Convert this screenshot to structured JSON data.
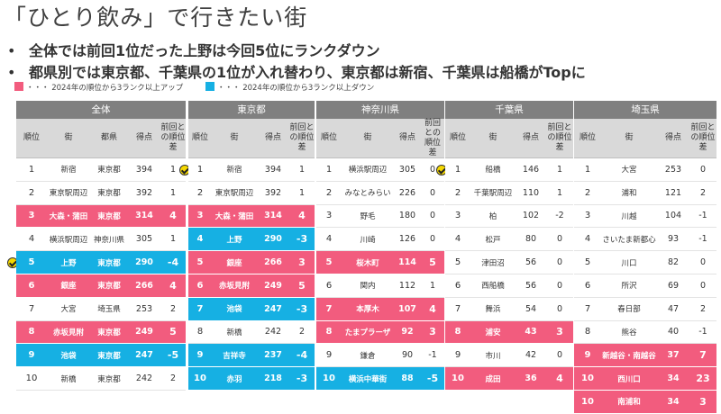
{
  "title": "「ひとり飲み」で行きたい街",
  "bullets": [
    "全体では前回1位だった上野は今回5位にランクダウン",
    "都県別では東京都、千葉県の1位が入れ替わり、東京都は新宿、千葉県は船橋がTopに"
  ],
  "bullet_marker": "•",
  "legend": [
    {
      "text": "・・・ 2024年の順位から3ランク以上アップ",
      "color": "#f25c7e"
    },
    {
      "text": "・・・ 2024年の順位から3ランク以上ダウン",
      "color": "#16b0e3"
    }
  ],
  "colors": {
    "up": "#f25c7e",
    "down": "#16b0e3",
    "header": "#808080",
    "subheader": "#d9d9d9",
    "check": "#f5d800"
  },
  "tables": [
    {
      "title": "全体",
      "headers": [
        "順位",
        "街",
        "都県",
        "得点",
        "前回との順位差"
      ],
      "rows": [
        {
          "rank": "1",
          "town": "新宿",
          "pref": "東京都",
          "score": "394",
          "diff": "1",
          "hl": ""
        },
        {
          "rank": "2",
          "town": "東京駅周辺",
          "pref": "東京都",
          "score": "392",
          "diff": "1",
          "hl": ""
        },
        {
          "rank": "3",
          "town": "大森・蒲田",
          "pref": "東京都",
          "score": "314",
          "diff": "4",
          "hl": "pink"
        },
        {
          "rank": "4",
          "town": "横浜駅周辺",
          "pref": "神奈川県",
          "score": "305",
          "diff": "1",
          "hl": ""
        },
        {
          "rank": "5",
          "town": "上野",
          "pref": "東京都",
          "score": "290",
          "diff": "-4",
          "hl": "blue",
          "check": true
        },
        {
          "rank": "6",
          "town": "銀座",
          "pref": "東京都",
          "score": "266",
          "diff": "4",
          "hl": "pink"
        },
        {
          "rank": "7",
          "town": "大宮",
          "pref": "埼玉県",
          "score": "253",
          "diff": "2",
          "hl": ""
        },
        {
          "rank": "8",
          "town": "赤坂見附",
          "pref": "東京都",
          "score": "249",
          "diff": "5",
          "hl": "pink"
        },
        {
          "rank": "9",
          "town": "池袋",
          "pref": "東京都",
          "score": "247",
          "diff": "-5",
          "hl": "blue"
        },
        {
          "rank": "10",
          "town": "新橋",
          "pref": "東京都",
          "score": "242",
          "diff": "2",
          "hl": ""
        }
      ]
    },
    {
      "title": "東京都",
      "headers": [
        "順位",
        "街",
        "得点",
        "前回との順位差"
      ],
      "rows": [
        {
          "rank": "1",
          "town": "新宿",
          "score": "394",
          "diff": "1",
          "hl": "",
          "check": true
        },
        {
          "rank": "2",
          "town": "東京駅周辺",
          "score": "392",
          "diff": "1",
          "hl": ""
        },
        {
          "rank": "3",
          "town": "大森・蒲田",
          "score": "314",
          "diff": "4",
          "hl": "pink"
        },
        {
          "rank": "4",
          "town": "上野",
          "score": "290",
          "diff": "-3",
          "hl": "blue"
        },
        {
          "rank": "5",
          "town": "銀座",
          "score": "266",
          "diff": "3",
          "hl": "pink"
        },
        {
          "rank": "6",
          "town": "赤坂見附",
          "score": "249",
          "diff": "5",
          "hl": "pink"
        },
        {
          "rank": "7",
          "town": "池袋",
          "score": "247",
          "diff": "-3",
          "hl": "blue"
        },
        {
          "rank": "8",
          "town": "新橋",
          "score": "242",
          "diff": "2",
          "hl": ""
        },
        {
          "rank": "9",
          "town": "吉祥寺",
          "score": "237",
          "diff": "-4",
          "hl": "blue"
        },
        {
          "rank": "10",
          "town": "赤羽",
          "score": "218",
          "diff": "-3",
          "hl": "blue"
        }
      ]
    },
    {
      "title": "神奈川県",
      "headers": [
        "順位",
        "街",
        "得点",
        "前回との順位差"
      ],
      "rows": [
        {
          "rank": "1",
          "town": "横浜駅周辺",
          "score": "305",
          "diff": "0",
          "hl": ""
        },
        {
          "rank": "2",
          "town": "みなとみらい",
          "score": "226",
          "diff": "0",
          "hl": ""
        },
        {
          "rank": "3",
          "town": "野毛",
          "score": "180",
          "diff": "0",
          "hl": ""
        },
        {
          "rank": "4",
          "town": "川崎",
          "score": "126",
          "diff": "0",
          "hl": ""
        },
        {
          "rank": "5",
          "town": "桜木町",
          "score": "114",
          "diff": "5",
          "hl": "pink"
        },
        {
          "rank": "6",
          "town": "関内",
          "score": "112",
          "diff": "1",
          "hl": ""
        },
        {
          "rank": "7",
          "town": "本厚木",
          "score": "107",
          "diff": "4",
          "hl": "pink"
        },
        {
          "rank": "8",
          "town": "たまプラーザ",
          "score": "92",
          "diff": "3",
          "hl": "pink"
        },
        {
          "rank": "9",
          "town": "鎌倉",
          "score": "90",
          "diff": "-1",
          "hl": ""
        },
        {
          "rank": "10",
          "town": "横浜中華街",
          "score": "88",
          "diff": "-5",
          "hl": "blue"
        }
      ]
    },
    {
      "title": "千葉県",
      "headers": [
        "順位",
        "街",
        "得点",
        "前回との順位差"
      ],
      "rows": [
        {
          "rank": "1",
          "town": "船橋",
          "score": "146",
          "diff": "1",
          "hl": "",
          "check": true
        },
        {
          "rank": "2",
          "town": "千葉駅周辺",
          "score": "110",
          "diff": "1",
          "hl": ""
        },
        {
          "rank": "3",
          "town": "柏",
          "score": "102",
          "diff": "-2",
          "hl": ""
        },
        {
          "rank": "4",
          "town": "松戸",
          "score": "80",
          "diff": "0",
          "hl": ""
        },
        {
          "rank": "5",
          "town": "津田沼",
          "score": "56",
          "diff": "0",
          "hl": ""
        },
        {
          "rank": "6",
          "town": "西船橋",
          "score": "56",
          "diff": "0",
          "hl": ""
        },
        {
          "rank": "7",
          "town": "舞浜",
          "score": "54",
          "diff": "0",
          "hl": ""
        },
        {
          "rank": "8",
          "town": "浦安",
          "score": "43",
          "diff": "3",
          "hl": "pink"
        },
        {
          "rank": "9",
          "town": "市川",
          "score": "42",
          "diff": "0",
          "hl": ""
        },
        {
          "rank": "10",
          "town": "成田",
          "score": "36",
          "diff": "4",
          "hl": "pink"
        }
      ]
    },
    {
      "title": "埼玉県",
      "headers": [
        "順位",
        "街",
        "得点",
        "前回との順位差"
      ],
      "rows": [
        {
          "rank": "1",
          "town": "大宮",
          "score": "253",
          "diff": "0",
          "hl": ""
        },
        {
          "rank": "2",
          "town": "浦和",
          "score": "121",
          "diff": "2",
          "hl": ""
        },
        {
          "rank": "3",
          "town": "川越",
          "score": "104",
          "diff": "-1",
          "hl": ""
        },
        {
          "rank": "4",
          "town": "さいたま新都心",
          "score": "93",
          "diff": "-1",
          "hl": ""
        },
        {
          "rank": "5",
          "town": "川口",
          "score": "82",
          "diff": "0",
          "hl": ""
        },
        {
          "rank": "6",
          "town": "所沢",
          "score": "69",
          "diff": "0",
          "hl": ""
        },
        {
          "rank": "7",
          "town": "春日部",
          "score": "47",
          "diff": "2",
          "hl": ""
        },
        {
          "rank": "8",
          "town": "熊谷",
          "score": "40",
          "diff": "-1",
          "hl": ""
        },
        {
          "rank": "9",
          "town": "新越谷・南越谷",
          "score": "37",
          "diff": "7",
          "hl": "pink"
        },
        {
          "rank": "10",
          "town": "西川口",
          "score": "34",
          "diff": "23",
          "hl": "pink"
        },
        {
          "rank": "10",
          "town": "南浦和",
          "score": "34",
          "diff": "3",
          "hl": "pink"
        }
      ]
    }
  ]
}
